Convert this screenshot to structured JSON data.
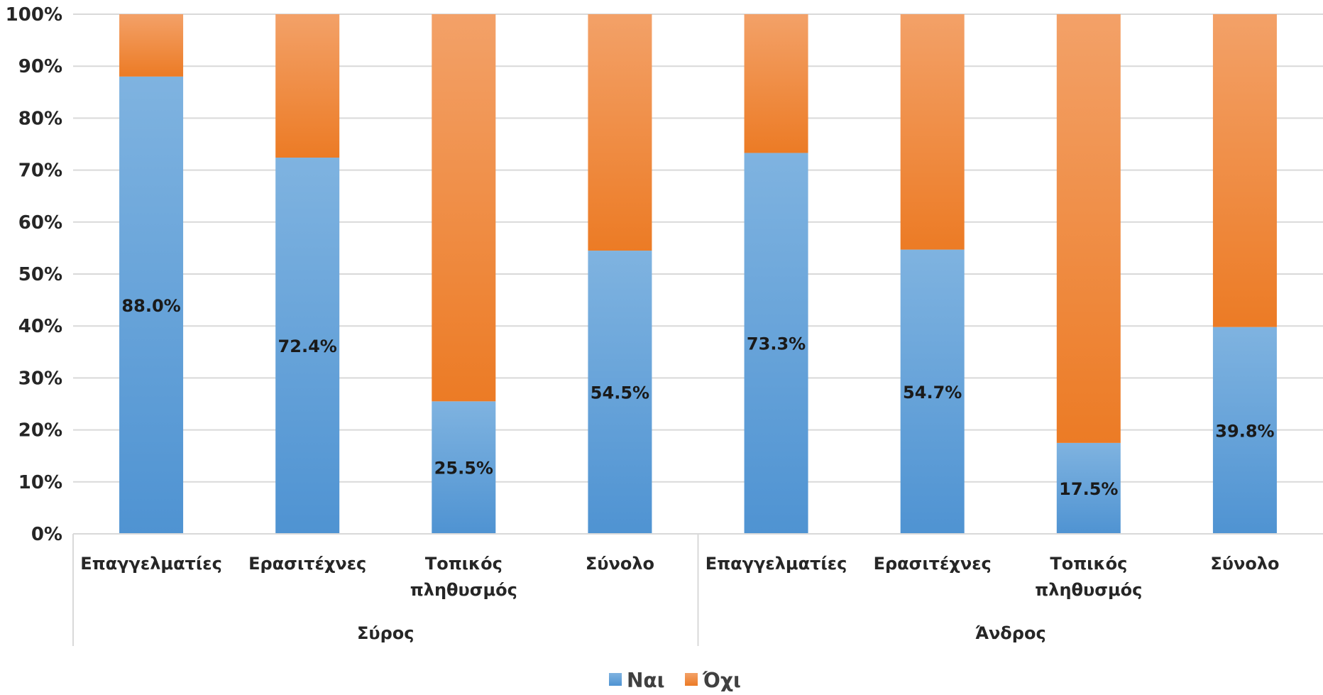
{
  "chart_data": {
    "type": "bar",
    "stacked": true,
    "percent": true,
    "title": "",
    "xlabel": "",
    "ylabel": "",
    "ylim": [
      0,
      100
    ],
    "yticks": [
      "0%",
      "10%",
      "20%",
      "30%",
      "40%",
      "50%",
      "60%",
      "70%",
      "80%",
      "90%",
      "100%"
    ],
    "grid": true,
    "legend_position": "bottom",
    "groups": [
      {
        "name": "Σύρος",
        "categories": [
          [
            "Επαγγελματίες"
          ],
          [
            "Ερασιτέχνες"
          ],
          [
            "Τοπικός",
            "πληθυσμός"
          ],
          [
            "Σύνολο"
          ]
        ]
      },
      {
        "name": "Άνδρος",
        "categories": [
          [
            "Επαγγελματίες"
          ],
          [
            "Ερασιτέχνες"
          ],
          [
            "Τοπικός",
            "πληθυσμός"
          ],
          [
            "Σύνολο"
          ]
        ]
      }
    ],
    "series": [
      {
        "name": "Ναι",
        "color": "#5b9bd5",
        "values": [
          88.0,
          72.4,
          25.5,
          54.5,
          73.3,
          54.7,
          17.5,
          39.8
        ],
        "labels": [
          "88.0%",
          "72.4%",
          "25.5%",
          "54.5%",
          "73.3%",
          "54.7%",
          "17.5%",
          "39.8%"
        ]
      },
      {
        "name": "Όχι",
        "color": "#ed7d31",
        "values": [
          12.0,
          27.6,
          74.5,
          45.5,
          26.7,
          45.3,
          82.5,
          60.2
        ]
      }
    ]
  }
}
